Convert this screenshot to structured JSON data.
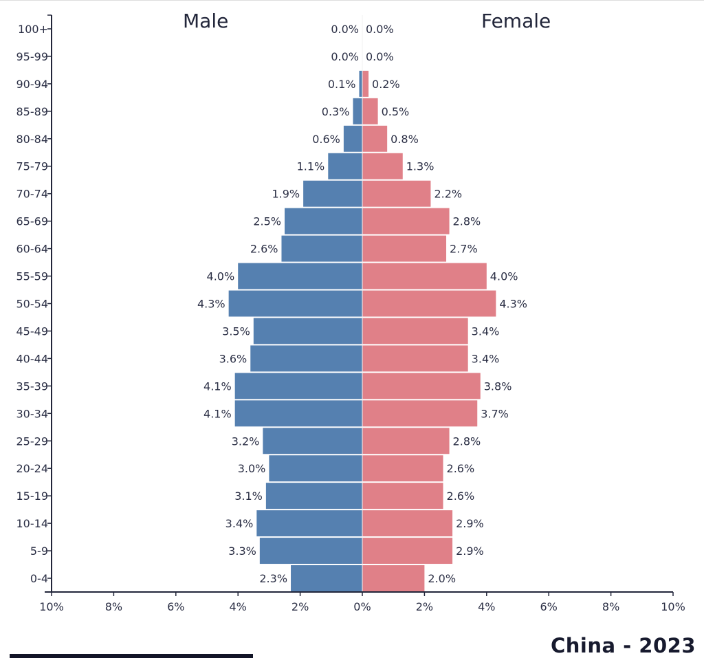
{
  "chart_data": {
    "type": "bar",
    "orientation": "horizontal",
    "layout": "population-pyramid",
    "title": "China - 2023",
    "male_label": "Male",
    "female_label": "Female",
    "categories": [
      "100+",
      "95-99",
      "90-94",
      "85-89",
      "80-84",
      "75-79",
      "70-74",
      "65-69",
      "60-64",
      "55-59",
      "50-54",
      "45-49",
      "40-44",
      "35-39",
      "30-34",
      "25-29",
      "20-24",
      "15-19",
      "10-14",
      "5-9",
      "0-4"
    ],
    "series": [
      {
        "name": "Male",
        "color": "#5580b0",
        "values": [
          0.0,
          0.0,
          0.1,
          0.3,
          0.6,
          1.1,
          1.9,
          2.5,
          2.6,
          4.0,
          4.3,
          3.5,
          3.6,
          4.1,
          4.1,
          3.2,
          3.0,
          3.1,
          3.4,
          3.3,
          2.3
        ],
        "labels": [
          "0.0%",
          "0.0%",
          "0.1%",
          "0.3%",
          "0.6%",
          "1.1%",
          "1.9%",
          "2.5%",
          "2.6%",
          "4.0%",
          "4.3%",
          "3.5%",
          "3.6%",
          "4.1%",
          "4.1%",
          "3.2%",
          "3.0%",
          "3.1%",
          "3.4%",
          "3.3%",
          "2.3%"
        ]
      },
      {
        "name": "Female",
        "color": "#e08088",
        "values": [
          0.0,
          0.0,
          0.2,
          0.5,
          0.8,
          1.3,
          2.2,
          2.8,
          2.7,
          4.0,
          4.3,
          3.4,
          3.4,
          3.8,
          3.7,
          2.8,
          2.6,
          2.6,
          2.9,
          2.9,
          2.0
        ],
        "labels": [
          "0.0%",
          "0.0%",
          "0.2%",
          "0.5%",
          "0.8%",
          "1.3%",
          "2.2%",
          "2.8%",
          "2.7%",
          "4.0%",
          "4.3%",
          "3.4%",
          "3.4%",
          "3.8%",
          "3.7%",
          "2.8%",
          "2.6%",
          "2.6%",
          "2.9%",
          "2.9%",
          "2.0%"
        ]
      }
    ],
    "xlim": [
      -10,
      10
    ],
    "xticks": [
      -10,
      -8,
      -6,
      -4,
      -2,
      0,
      2,
      4,
      6,
      8,
      10
    ],
    "xtick_labels": [
      "10%",
      "8%",
      "6%",
      "4%",
      "2%",
      "0%",
      "2%",
      "4%",
      "6%",
      "8%",
      "10%"
    ],
    "grid": false,
    "legend": "none"
  }
}
